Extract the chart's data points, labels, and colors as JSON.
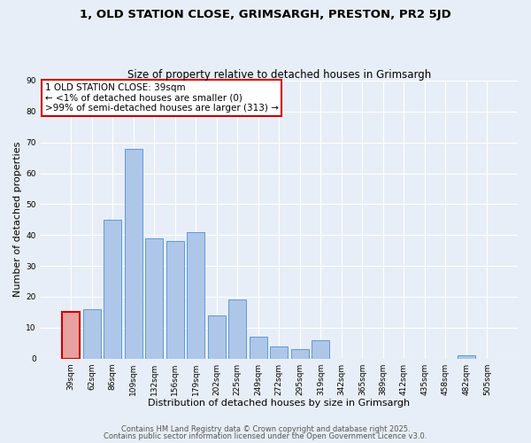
{
  "title": "1, OLD STATION CLOSE, GRIMSARGH, PRESTON, PR2 5JD",
  "subtitle": "Size of property relative to detached houses in Grimsargh",
  "xlabel": "Distribution of detached houses by size in Grimsargh",
  "ylabel": "Number of detached properties",
  "bin_labels": [
    "39sqm",
    "62sqm",
    "86sqm",
    "109sqm",
    "132sqm",
    "156sqm",
    "179sqm",
    "202sqm",
    "225sqm",
    "249sqm",
    "272sqm",
    "295sqm",
    "319sqm",
    "342sqm",
    "365sqm",
    "389sqm",
    "412sqm",
    "435sqm",
    "458sqm",
    "482sqm",
    "505sqm"
  ],
  "bar_heights": [
    15,
    16,
    45,
    68,
    39,
    38,
    41,
    14,
    19,
    7,
    4,
    3,
    6,
    0,
    0,
    0,
    0,
    0,
    0,
    1,
    0
  ],
  "highlight_index": 0,
  "highlight_color": "#e8a0a0",
  "bar_color": "#aec6e8",
  "bar_edge_color": "#5b9bd5",
  "highlight_edge_color": "#cc0000",
  "ylim": [
    0,
    90
  ],
  "yticks": [
    0,
    10,
    20,
    30,
    40,
    50,
    60,
    70,
    80,
    90
  ],
  "annotation_box_text": "1 OLD STATION CLOSE: 39sqm\n← <1% of detached houses are smaller (0)\n>99% of semi-detached houses are larger (313) →",
  "footer_line1": "Contains HM Land Registry data © Crown copyright and database right 2025.",
  "footer_line2": "Contains public sector information licensed under the Open Government Licence v3.0.",
  "bg_color": "#e8eef7",
  "plot_bg_color": "#e8eef7",
  "grid_color": "#ffffff",
  "title_fontsize": 9.5,
  "subtitle_fontsize": 8.5,
  "axis_label_fontsize": 8,
  "tick_fontsize": 6.5,
  "annotation_fontsize": 7.5,
  "footer_fontsize": 6.0
}
